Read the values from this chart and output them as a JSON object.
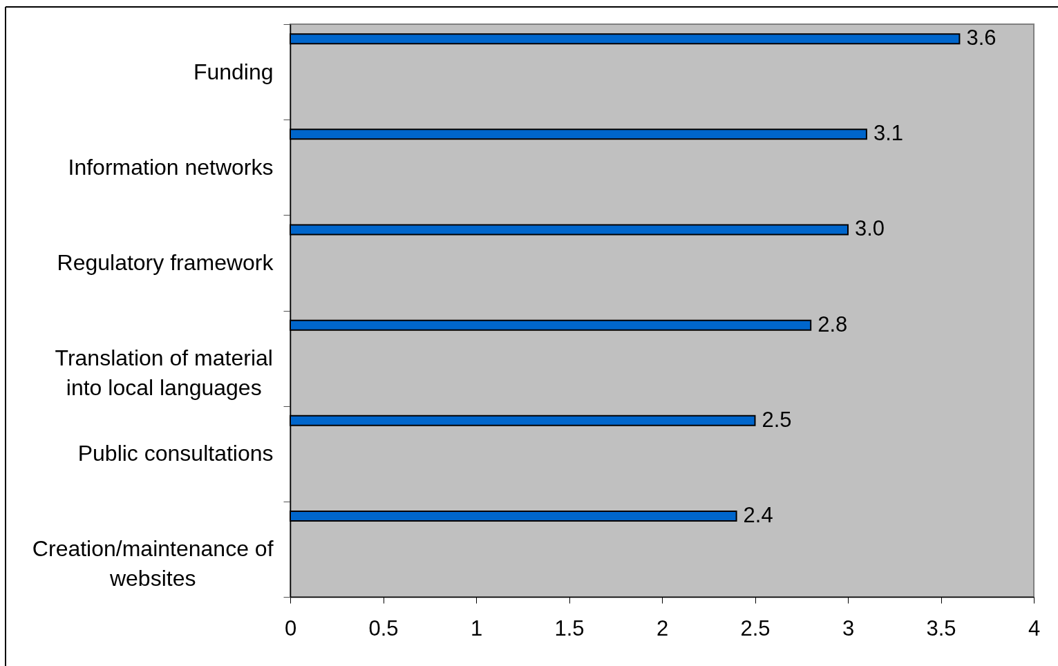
{
  "chart_data": {
    "type": "bar",
    "orientation": "horizontal",
    "categories": [
      "Funding",
      "Information networks",
      "Regulatory framework",
      "Translation of material into local languages",
      "Public consultations",
      "Creation/maintenance of websites"
    ],
    "values": [
      3.6,
      3.1,
      3.0,
      2.8,
      2.5,
      2.4
    ],
    "value_labels": [
      "3.6",
      "3.1",
      "3.0",
      "2.8",
      "2.5",
      "2.4"
    ],
    "color": "#0066cc",
    "xlim": [
      0,
      4
    ],
    "xticks": [
      0,
      0.5,
      1,
      1.5,
      2,
      2.5,
      3,
      3.5,
      4
    ],
    "grid": false
  }
}
